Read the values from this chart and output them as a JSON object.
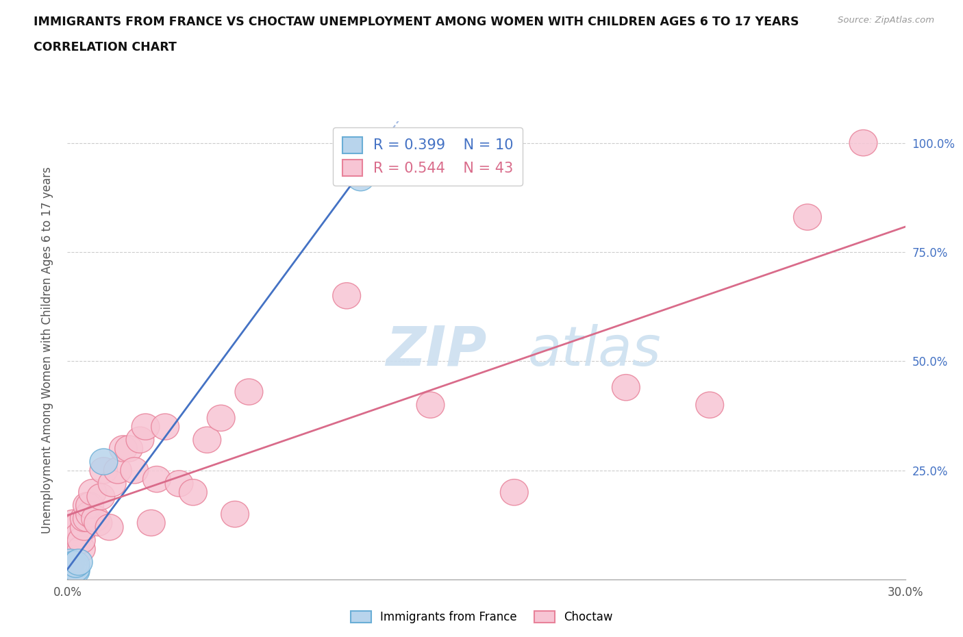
{
  "title_line1": "IMMIGRANTS FROM FRANCE VS CHOCTAW UNEMPLOYMENT AMONG WOMEN WITH CHILDREN AGES 6 TO 17 YEARS",
  "title_line2": "CORRELATION CHART",
  "source_text": "Source: ZipAtlas.com",
  "ylabel": "Unemployment Among Women with Children Ages 6 to 17 years",
  "xlim": [
    0.0,
    0.3
  ],
  "ylim": [
    0.0,
    1.05
  ],
  "xticks": [
    0.0,
    0.05,
    0.1,
    0.15,
    0.2,
    0.25,
    0.3
  ],
  "ytick_positions": [
    0.0,
    0.25,
    0.5,
    0.75,
    1.0
  ],
  "ytick_labels": [
    "",
    "25.0%",
    "50.0%",
    "75.0%",
    "100.0%"
  ],
  "legend_label1": "Immigrants from France",
  "legend_label2": "Choctaw",
  "r1": "0.399",
  "n1": "10",
  "r2": "0.544",
  "n2": "43",
  "color_france_fill": "#b8d4ec",
  "color_france_edge": "#6aaed6",
  "color_choctaw_fill": "#f7c5d4",
  "color_choctaw_edge": "#e8829a",
  "color_trendline_france": "#4472c4",
  "color_trendline_choctaw": "#d96b8a",
  "france_x": [
    0.001,
    0.001,
    0.002,
    0.002,
    0.003,
    0.003,
    0.003,
    0.004,
    0.013,
    0.105
  ],
  "france_y": [
    0.02,
    0.04,
    0.02,
    0.035,
    0.02,
    0.025,
    0.035,
    0.04,
    0.27,
    0.92
  ],
  "choctaw_x": [
    0.001,
    0.001,
    0.002,
    0.003,
    0.003,
    0.004,
    0.005,
    0.005,
    0.006,
    0.006,
    0.007,
    0.007,
    0.008,
    0.008,
    0.009,
    0.01,
    0.011,
    0.012,
    0.013,
    0.015,
    0.016,
    0.018,
    0.02,
    0.022,
    0.024,
    0.026,
    0.028,
    0.03,
    0.032,
    0.035,
    0.04,
    0.045,
    0.05,
    0.055,
    0.06,
    0.065,
    0.1,
    0.13,
    0.16,
    0.2,
    0.23,
    0.265,
    0.285
  ],
  "choctaw_y": [
    0.03,
    0.05,
    0.13,
    0.08,
    0.12,
    0.1,
    0.07,
    0.09,
    0.12,
    0.14,
    0.14,
    0.17,
    0.15,
    0.17,
    0.2,
    0.14,
    0.13,
    0.19,
    0.25,
    0.12,
    0.22,
    0.25,
    0.3,
    0.3,
    0.25,
    0.32,
    0.35,
    0.13,
    0.23,
    0.35,
    0.22,
    0.2,
    0.32,
    0.37,
    0.15,
    0.43,
    0.65,
    0.4,
    0.2,
    0.44,
    0.4,
    0.83,
    1.0
  ],
  "grid_color": "#cccccc",
  "bg_color": "#ffffff",
  "watermark_zip_color": "#dce8f5",
  "watermark_atlas_color": "#c5d8ee"
}
